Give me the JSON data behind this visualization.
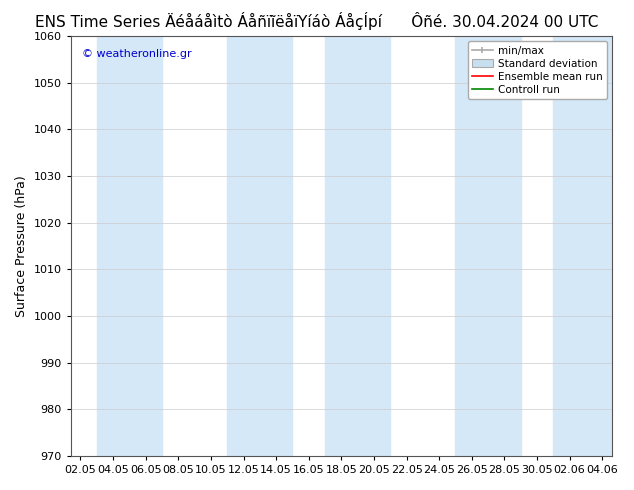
{
  "title_left": "ENS Time Series Äéåáåìtò ÁåñïĩëåïYíáò ÁåçÍpí",
  "title_right": "Ôñé. 30.04.2024 00 UTC",
  "ylabel": "Surface Pressure (hPa)",
  "ylim": [
    970,
    1060
  ],
  "yticks": [
    970,
    980,
    990,
    1000,
    1010,
    1020,
    1030,
    1040,
    1050,
    1060
  ],
  "x_labels": [
    "02.05",
    "04.05",
    "06.05",
    "08.05",
    "10.05",
    "12.05",
    "14.05",
    "16.05",
    "18.05",
    "20.05",
    "22.05",
    "24.05",
    "26.05",
    "28.05",
    "30.05",
    "02.06",
    "04.06"
  ],
  "watermark": "© weatheronline.gr",
  "watermark_color": "#0000cc",
  "bg_color": "#ffffff",
  "plot_bg_color": "#ffffff",
  "band_color": "#d4e8f8",
  "legend_items": [
    "min/max",
    "Standard deviation",
    "Ensemble mean run",
    "Controll run"
  ],
  "legend_colors": [
    "#aaaaaa",
    "#c8dff0",
    "#ff0000",
    "#008800"
  ],
  "title_fontsize": 11,
  "axis_label_fontsize": 9,
  "tick_fontsize": 8
}
